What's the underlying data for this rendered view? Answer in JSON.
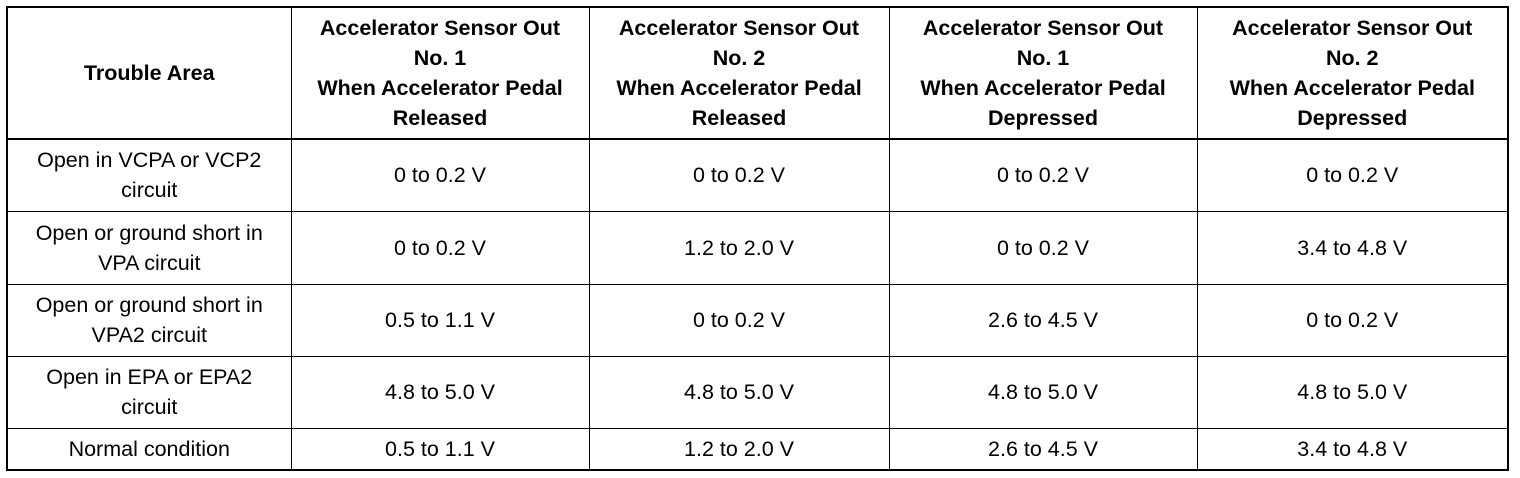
{
  "table": {
    "header": [
      [
        "Trouble Area"
      ],
      [
        "Accelerator Sensor Out",
        "No. 1",
        "When Accelerator Pedal",
        "Released"
      ],
      [
        "Accelerator Sensor Out",
        "No. 2",
        "When Accelerator Pedal",
        "Released"
      ],
      [
        "Accelerator Sensor Out",
        "No. 1",
        "When Accelerator Pedal",
        "Depressed"
      ],
      [
        "Accelerator Sensor Out",
        "No. 2",
        "When Accelerator Pedal",
        "Depressed"
      ]
    ],
    "rows": [
      [
        [
          "Open in VCPA or VCP2",
          "circuit"
        ],
        "0 to 0.2 V",
        "0 to 0.2 V",
        "0 to 0.2 V",
        "0 to 0.2 V"
      ],
      [
        [
          "Open or ground short in",
          "VPA circuit"
        ],
        "0 to 0.2 V",
        "1.2 to 2.0 V",
        "0 to 0.2 V",
        "3.4 to 4.8 V"
      ],
      [
        [
          "Open or ground short in",
          "VPA2 circuit"
        ],
        "0.5 to 1.1 V",
        "0 to 0.2 V",
        "2.6 to 4.5 V",
        "0 to 0.2 V"
      ],
      [
        [
          "Open in EPA or EPA2",
          "circuit"
        ],
        "4.8 to 5.0 V",
        "4.8 to 5.0 V",
        "4.8 to 5.0 V",
        "4.8 to 5.0 V"
      ],
      [
        [
          "Normal condition"
        ],
        "0.5 to 1.1 V",
        "1.2 to 2.0 V",
        "2.6 to 4.5 V",
        "3.4 to 4.8 V"
      ]
    ]
  }
}
